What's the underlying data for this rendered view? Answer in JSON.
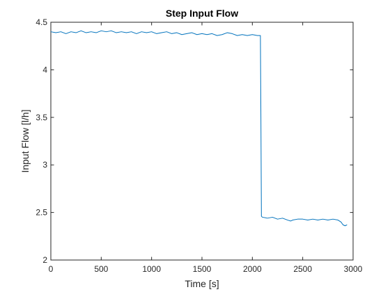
{
  "chart_data": {
    "type": "line",
    "title": "Step Input Flow",
    "xlabel": "Time [s]",
    "ylabel": "Input Flow [l/h]",
    "xlim": [
      0,
      3000
    ],
    "ylim": [
      2,
      4.5
    ],
    "xticks": [
      0,
      500,
      1000,
      1500,
      2000,
      2500,
      3000
    ],
    "yticks": [
      2,
      2.5,
      3,
      3.5,
      4,
      4.5
    ],
    "grid": false,
    "box": true,
    "series": [
      {
        "color": "#0072BD",
        "x": [
          0,
          50,
          100,
          150,
          200,
          250,
          300,
          350,
          400,
          450,
          500,
          550,
          600,
          650,
          700,
          750,
          800,
          850,
          900,
          950,
          1000,
          1050,
          1100,
          1150,
          1200,
          1250,
          1300,
          1350,
          1400,
          1450,
          1500,
          1550,
          1600,
          1650,
          1700,
          1750,
          1800,
          1850,
          1900,
          1950,
          2000,
          2050,
          2080,
          2085,
          2090,
          2100,
          2150,
          2200,
          2250,
          2300,
          2350,
          2380,
          2400,
          2450,
          2500,
          2550,
          2600,
          2650,
          2700,
          2750,
          2800,
          2850,
          2880,
          2900,
          2920,
          2940
        ],
        "y": [
          4.4,
          4.39,
          4.4,
          4.38,
          4.4,
          4.39,
          4.41,
          4.39,
          4.4,
          4.39,
          4.41,
          4.4,
          4.41,
          4.39,
          4.4,
          4.39,
          4.4,
          4.38,
          4.4,
          4.39,
          4.4,
          4.38,
          4.39,
          4.4,
          4.38,
          4.39,
          4.37,
          4.38,
          4.39,
          4.37,
          4.38,
          4.37,
          4.38,
          4.36,
          4.37,
          4.39,
          4.38,
          4.36,
          4.37,
          4.36,
          4.37,
          4.36,
          4.36,
          3.5,
          2.46,
          2.45,
          2.44,
          2.45,
          2.43,
          2.44,
          2.42,
          2.41,
          2.42,
          2.43,
          2.43,
          2.42,
          2.43,
          2.42,
          2.43,
          2.42,
          2.43,
          2.42,
          2.4,
          2.37,
          2.36,
          2.37
        ]
      }
    ]
  }
}
